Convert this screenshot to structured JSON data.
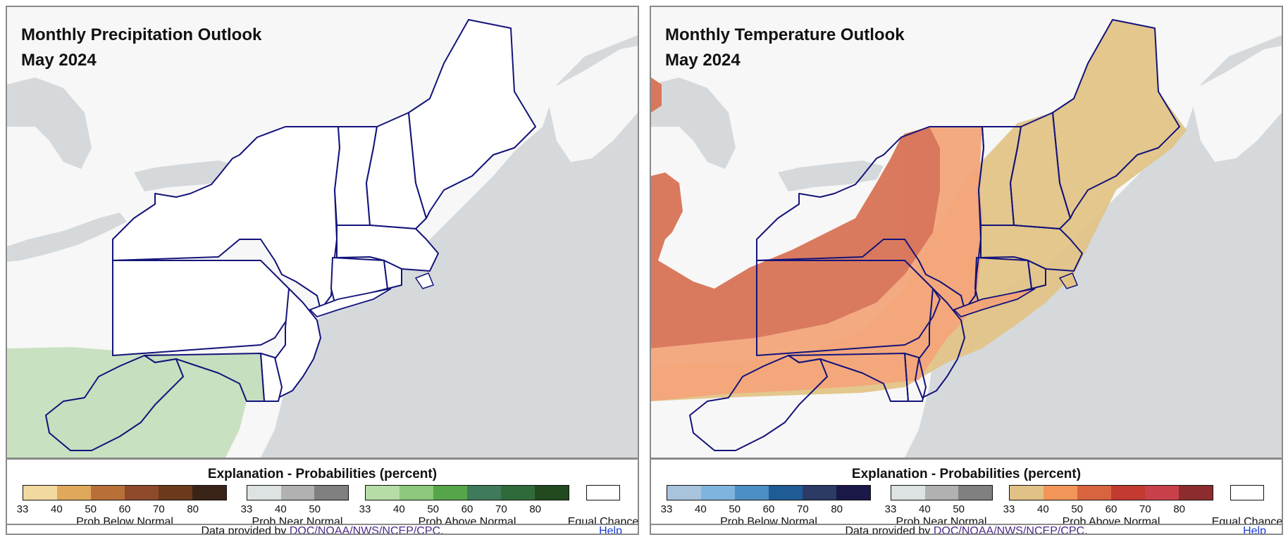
{
  "panels": [
    {
      "title": "Monthly Precipitation Outlook",
      "subtitle": "May 2024",
      "regions": [
        {
          "category": "Above Normal (precip)",
          "probability_range": "33-40"
        }
      ],
      "legend": {
        "heading": "Explanation - Probabilities (percent)",
        "below": {
          "label": "Prob Below Normal",
          "ticks": [
            "33",
            "40",
            "50",
            "60",
            "70",
            "80"
          ],
          "colors": [
            "#f2d9a0",
            "#dfa85a",
            "#b87038",
            "#8e4a2a",
            "#6a3a1a",
            "#3a2418"
          ]
        },
        "near": {
          "label": "Prob Near Normal",
          "ticks": [
            "33",
            "40",
            "50"
          ],
          "colors": [
            "#dde2e2",
            "#b1b1b1",
            "#808080"
          ]
        },
        "above": {
          "label": "Prob Above Normal",
          "ticks": [
            "33",
            "40",
            "50",
            "60",
            "70",
            "80"
          ],
          "colors": [
            "#b6dca7",
            "#8dc87c",
            "#56a54a",
            "#3f7a5a",
            "#2f6b3a",
            "#214a1f"
          ]
        },
        "equal_chance": "Equal Chance"
      },
      "footer": {
        "prefix": "Data provided by ",
        "link": "DOC/NOAA/NWS/NCEP/CPC",
        "suffix": ".",
        "help": "Help"
      }
    },
    {
      "title": "Monthly Temperature Outlook",
      "subtitle": "May 2024",
      "regions": [
        {
          "category": "Above Normal (temp)",
          "probability_range": "50-60"
        },
        {
          "category": "Above Normal (temp)",
          "probability_range": "40-50"
        },
        {
          "category": "Above Normal (temp)",
          "probability_range": "33-40"
        }
      ],
      "legend": {
        "heading": "Explanation - Probabilities (percent)",
        "below": {
          "label": "Prob Below Normal",
          "ticks": [
            "33",
            "40",
            "50",
            "60",
            "70",
            "80"
          ],
          "colors": [
            "#a8c3dc",
            "#7fb4de",
            "#4c8fc4",
            "#1f5c96",
            "#2c3a66",
            "#1a1848"
          ]
        },
        "near": {
          "label": "Prob Near Normal",
          "ticks": [
            "33",
            "40",
            "50"
          ],
          "colors": [
            "#dde2e2",
            "#b1b1b1",
            "#808080"
          ]
        },
        "above": {
          "label": "Prob Above Normal",
          "ticks": [
            "33",
            "40",
            "50",
            "60",
            "70",
            "80"
          ],
          "colors": [
            "#e1c185",
            "#f19558",
            "#d8643f",
            "#c33a30",
            "#c8414a",
            "#8d2c2e"
          ]
        },
        "equal_chance": "Equal Chance"
      },
      "footer": {
        "prefix": "Data provided by ",
        "link": "DOC/NOAA/NWS/NCEP/CPC",
        "suffix": ".",
        "help": "Help"
      }
    }
  ],
  "colors": {
    "ocean": "#d5d9dc",
    "land": "#f7f7f7",
    "lakes": "#d5d9dc",
    "state_border": "#13137a",
    "precip_above_33": "#c6dfbe",
    "temp_above_33": "#e2c487",
    "temp_above_40": "#f3a57a",
    "temp_above_50": "#d8775c"
  }
}
